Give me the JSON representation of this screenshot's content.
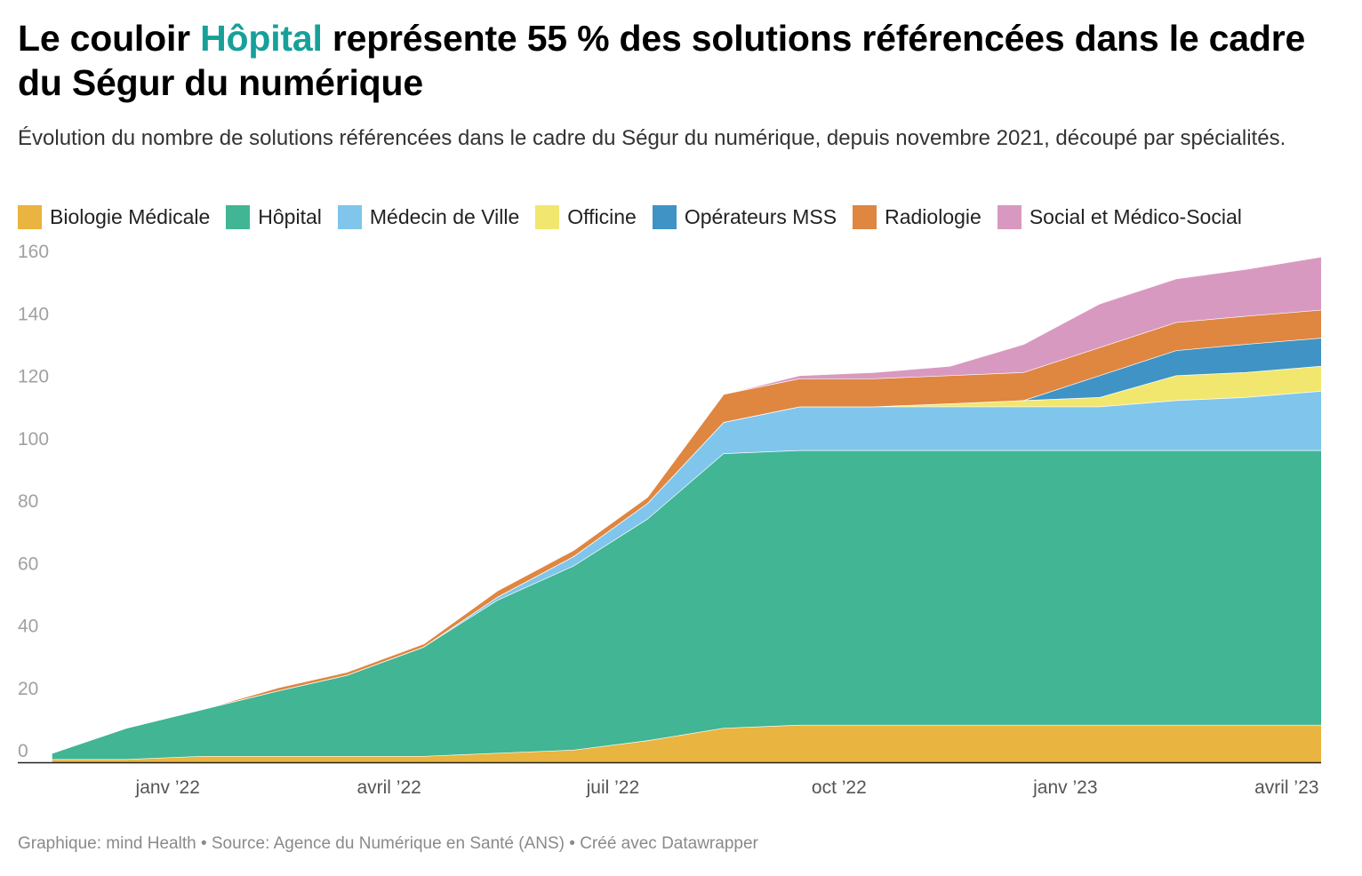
{
  "title": {
    "before": "Le couloir ",
    "highlight": "Hôpital",
    "after": " représente 55 % des solutions référencées dans le cadre du Ségur du numérique",
    "highlight_color": "#17a09a"
  },
  "subtitle": "Évolution du nombre de solutions référencées dans le cadre du Ségur du numérique, depuis novembre 2021, découpé par spécialités.",
  "footer": {
    "text": "Graphique: mind Health • Source: Agence du Numérique en Santé (ANS) • Créé avec Datawrapper"
  },
  "chart_data": {
    "type": "area",
    "stacked": true,
    "x": [
      "2021-11-15",
      "2021-12-15",
      "2022-01-15",
      "2022-02-15",
      "2022-03-15",
      "2022-04-15",
      "2022-05-15",
      "2022-06-15",
      "2022-07-15",
      "2022-08-15",
      "2022-09-15",
      "2022-10-15",
      "2022-11-15",
      "2022-12-15",
      "2023-01-15",
      "2023-02-15",
      "2023-03-15",
      "2023-04-15"
    ],
    "x_ticks": [
      {
        "date": "2022-01-01",
        "label": "janv ’22"
      },
      {
        "date": "2022-04-01",
        "label": "avril ’22"
      },
      {
        "date": "2022-07-01",
        "label": "juil ’22"
      },
      {
        "date": "2022-10-01",
        "label": "oct ’22"
      },
      {
        "date": "2023-01-01",
        "label": "janv ’23"
      },
      {
        "date": "2023-04-01",
        "label": "avril ’23"
      }
    ],
    "ylim": [
      0,
      160
    ],
    "y_ticks": [
      0,
      20,
      40,
      60,
      80,
      100,
      120,
      140,
      160
    ],
    "xlim": [
      "2021-11-01",
      "2023-04-15"
    ],
    "grid": false,
    "legend_position": "top",
    "series": [
      {
        "name": "Biologie Médicale",
        "color": "#e9b43f",
        "values": [
          1,
          1,
          2,
          2,
          2,
          2,
          3,
          4,
          7,
          11,
          12,
          12,
          12,
          12,
          12,
          12,
          12,
          12
        ]
      },
      {
        "name": "Hôpital",
        "color": "#41b594",
        "values": [
          2,
          10,
          15,
          21,
          26,
          35,
          49,
          59,
          71,
          88,
          88,
          88,
          88,
          88,
          88,
          88,
          88,
          88
        ]
      },
      {
        "name": "Médecin de Ville",
        "color": "#80c5eb",
        "values": [
          0,
          0,
          0,
          0,
          0,
          0,
          1,
          3,
          5,
          10,
          14,
          14,
          14,
          14,
          14,
          16,
          17,
          19
        ]
      },
      {
        "name": "Officine",
        "color": "#f2e76e",
        "values": [
          0,
          0,
          0,
          0,
          0,
          0,
          0,
          0,
          0,
          0,
          0,
          0,
          1,
          2,
          3,
          8,
          8,
          8
        ]
      },
      {
        "name": "Opérateurs MSS",
        "color": "#3f93c5",
        "values": [
          0,
          0,
          0,
          0,
          0,
          0,
          0,
          0,
          0,
          0,
          0,
          0,
          0,
          0,
          7,
          8,
          9,
          9
        ]
      },
      {
        "name": "Radiologie",
        "color": "#df8641",
        "values": [
          0,
          0,
          0,
          1,
          1,
          1,
          2,
          2,
          2,
          9,
          9,
          9,
          9,
          9,
          9,
          9,
          9,
          9
        ]
      },
      {
        "name": "Social et Médico-Social",
        "color": "#d899c0",
        "values": [
          0,
          0,
          0,
          0,
          0,
          0,
          0,
          0,
          0,
          0,
          1,
          2,
          3,
          9,
          14,
          14,
          15,
          17
        ]
      }
    ]
  }
}
